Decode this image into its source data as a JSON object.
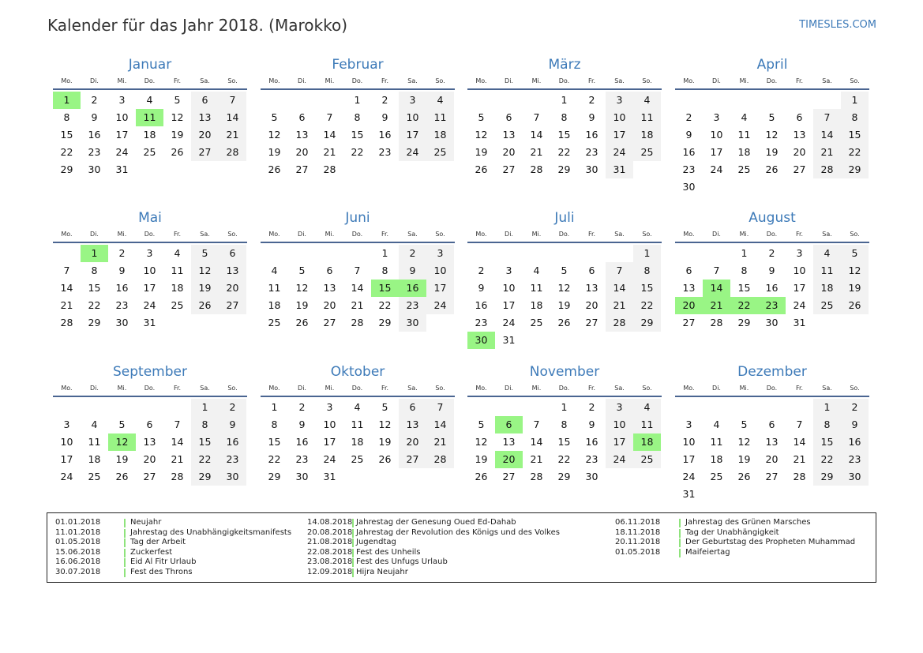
{
  "header": {
    "title": "Kalender für das Jahr 2018. (Marokko)",
    "brand": "TIMESLES.COM"
  },
  "weekdays": [
    "Mo.",
    "Di.",
    "Mi.",
    "Do.",
    "Fr.",
    "Sa.",
    "So."
  ],
  "colors": {
    "holiday": "#99f585",
    "weekend": "#f2f2f2",
    "accent": "#3d7ab8"
  },
  "months": [
    {
      "name": "Januar",
      "start": 0,
      "days": 31,
      "holidays": [
        1,
        11
      ]
    },
    {
      "name": "Februar",
      "start": 3,
      "days": 28,
      "holidays": []
    },
    {
      "name": "März",
      "start": 3,
      "days": 31,
      "holidays": []
    },
    {
      "name": "April",
      "start": 6,
      "days": 30,
      "holidays": []
    },
    {
      "name": "Mai",
      "start": 1,
      "days": 31,
      "holidays": [
        1
      ]
    },
    {
      "name": "Juni",
      "start": 4,
      "days": 30,
      "holidays": [
        15,
        16
      ]
    },
    {
      "name": "Juli",
      "start": 6,
      "days": 31,
      "holidays": [
        30
      ]
    },
    {
      "name": "August",
      "start": 2,
      "days": 31,
      "holidays": [
        14,
        20,
        21,
        22,
        23
      ]
    },
    {
      "name": "September",
      "start": 5,
      "days": 30,
      "holidays": [
        12
      ]
    },
    {
      "name": "Oktober",
      "start": 0,
      "days": 31,
      "holidays": []
    },
    {
      "name": "November",
      "start": 3,
      "days": 30,
      "holidays": [
        6,
        18,
        20
      ]
    },
    {
      "name": "Dezember",
      "start": 5,
      "days": 31,
      "holidays": []
    }
  ],
  "legend": [
    [
      {
        "date": "01.01.2018",
        "name": "Neujahr"
      },
      {
        "date": "11.01.2018",
        "name": "Jahrestag des Unabhängigkeitsmanifests"
      },
      {
        "date": "01.05.2018",
        "name": "Tag der Arbeit"
      },
      {
        "date": "15.06.2018",
        "name": "Zuckerfest"
      },
      {
        "date": "16.06.2018",
        "name": "Eid Al Fitr Urlaub"
      },
      {
        "date": "30.07.2018",
        "name": "Fest des Throns"
      }
    ],
    [
      {
        "date": "14.08.2018",
        "name": "Jahrestag der Genesung Oued Ed-Dahab"
      },
      {
        "date": "20.08.2018",
        "name": "Jahrestag der Revolution des Königs und des Volkes"
      },
      {
        "date": "21.08.2018",
        "name": "Jugendtag"
      },
      {
        "date": "22.08.2018",
        "name": "Fest des Unheils"
      },
      {
        "date": "23.08.2018",
        "name": "Fest des Unfugs Urlaub"
      },
      {
        "date": "12.09.2018",
        "name": "Hijra Neujahr"
      }
    ],
    [
      {
        "date": "06.11.2018",
        "name": "Jahrestag des Grünen Marsches"
      },
      {
        "date": "18.11.2018",
        "name": "Tag der Unabhängigkeit"
      },
      {
        "date": "20.11.2018",
        "name": "Der Geburtstag des Propheten Muhammad"
      },
      {
        "date": "01.05.2018",
        "name": "Maifeiertag"
      }
    ]
  ]
}
